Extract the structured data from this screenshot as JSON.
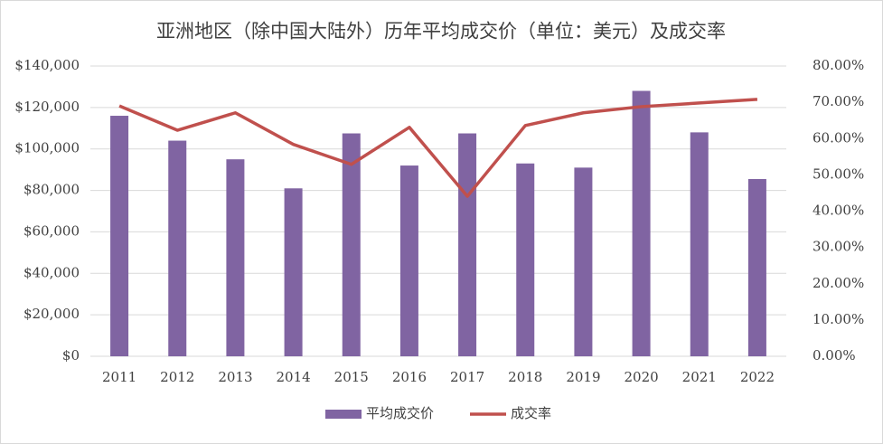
{
  "chart_data": {
    "type": "bar-line",
    "title": "亚洲地区（除中国大陆外）历年平均成交价（单位：美元）及成交率",
    "categories": [
      "2011",
      "2012",
      "2013",
      "2014",
      "2015",
      "2016",
      "2017",
      "2018",
      "2019",
      "2020",
      "2021",
      "2022"
    ],
    "series": [
      {
        "name": "平均成交价",
        "type": "bar",
        "color": "#8064a2",
        "values": [
          116000,
          104000,
          95000,
          81000,
          107500,
          92000,
          107500,
          93000,
          91000,
          128000,
          108000,
          85500
        ]
      },
      {
        "name": "成交率",
        "type": "line",
        "axis": "y2",
        "color": "#c0504d",
        "values": [
          69,
          62.3,
          67.1,
          58.4,
          52.9,
          63.1,
          44.1,
          63.6,
          67.1,
          68.8,
          69.8,
          70.8
        ]
      }
    ],
    "ylim": [
      0,
      140000
    ],
    "yticks": [
      {
        "value": 0,
        "label": "$0"
      },
      {
        "value": 20000,
        "label": "$20,000"
      },
      {
        "value": 40000,
        "label": "$40,000"
      },
      {
        "value": 60000,
        "label": "$60,000"
      },
      {
        "value": 80000,
        "label": "$80,000"
      },
      {
        "value": 100000,
        "label": "$100,000"
      },
      {
        "value": 120000,
        "label": "$120,000"
      },
      {
        "value": 140000,
        "label": "$140,000"
      }
    ],
    "y2lim": [
      0,
      80
    ],
    "y2ticks": [
      {
        "value": 0,
        "label": "0.00%"
      },
      {
        "value": 10,
        "label": "10.00%"
      },
      {
        "value": 20,
        "label": "20.00%"
      },
      {
        "value": 30,
        "label": "30.00%"
      },
      {
        "value": 40,
        "label": "40.00%"
      },
      {
        "value": 50,
        "label": "50.00%"
      },
      {
        "value": 60,
        "label": "60.00%"
      },
      {
        "value": 70,
        "label": "70.00%"
      },
      {
        "value": 80,
        "label": "80.00%"
      }
    ],
    "grid": true,
    "legend": "bottom"
  }
}
